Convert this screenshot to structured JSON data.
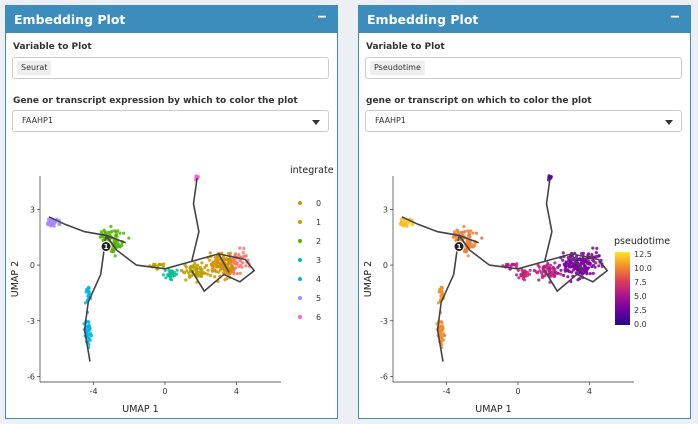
{
  "panels": [
    {
      "title": "Embedding Plot",
      "collapse_icon": "minus-icon",
      "variable_label": "Variable to Plot",
      "variable_value": "Seurat",
      "gene_label": "Gene or transcript expression by which to color the plot",
      "gene_value": "FAAHP1",
      "plot": {
        "type": "scatter",
        "xlabel": "UMAP 1",
        "ylabel": "UMAP 2",
        "x_ticks": [
          "-4",
          "0",
          "4"
        ],
        "y_ticks": [
          "3",
          "0",
          "-3",
          "-6"
        ],
        "legend_title": "integrate",
        "legend_items": [
          {
            "label": "0",
            "color": "#d39200"
          },
          {
            "label": "1",
            "color": "#b8a000"
          },
          {
            "label": "2",
            "color": "#53b400"
          },
          {
            "label": "3",
            "color": "#00c094"
          },
          {
            "label": "4",
            "color": "#00b6eb"
          },
          {
            "label": "5",
            "color": "#a58aff"
          },
          {
            "label": "6",
            "color": "#fb61d7"
          }
        ],
        "node_label": "1"
      }
    },
    {
      "title": "Embedding Plot",
      "collapse_icon": "minus-icon",
      "variable_label": "Variable to Plot",
      "variable_value": "Pseudotime",
      "gene_label": "gene or transcript on which to color the plot",
      "gene_value": "FAAHP1",
      "plot": {
        "type": "scatter",
        "xlabel": "UMAP 1",
        "ylabel": "UMAP 2",
        "x_ticks": [
          "-4",
          "0",
          "4"
        ],
        "y_ticks": [
          "3",
          "0",
          "-3",
          "-6"
        ],
        "colorbar_title": "pseudotime",
        "colorbar_ticks": [
          "12.5",
          "10.0",
          "7.5",
          "5.0",
          "2.5",
          "0.0"
        ],
        "node_label": "1"
      }
    }
  ],
  "chart_data": [
    {
      "type": "scatter",
      "xlabel": "UMAP 1",
      "ylabel": "UMAP 2",
      "xlim": [
        -7,
        6.5
      ],
      "ylim": [
        -6.3,
        4.8
      ],
      "color_by": "integrated cluster",
      "clusters": [
        {
          "name": "0",
          "center": [
            3.5,
            0.1
          ]
        },
        {
          "name": "1",
          "center": [
            1.6,
            -0.3
          ]
        },
        {
          "name": "2",
          "center": [
            -3.0,
            1.3
          ]
        },
        {
          "name": "3",
          "center": [
            0.4,
            -0.5
          ]
        },
        {
          "name": "4",
          "center": [
            -4.3,
            -3.5
          ]
        },
        {
          "name": "5",
          "center": [
            -6.3,
            2.3
          ]
        },
        {
          "name": "6",
          "center": [
            1.8,
            4.7
          ]
        }
      ]
    },
    {
      "type": "scatter",
      "xlabel": "UMAP 1",
      "ylabel": "UMAP 2",
      "xlim": [
        -7,
        6.5
      ],
      "ylim": [
        -6.3,
        4.8
      ],
      "color_by": "pseudotime",
      "color_range": [
        0,
        12.5
      ]
    }
  ]
}
